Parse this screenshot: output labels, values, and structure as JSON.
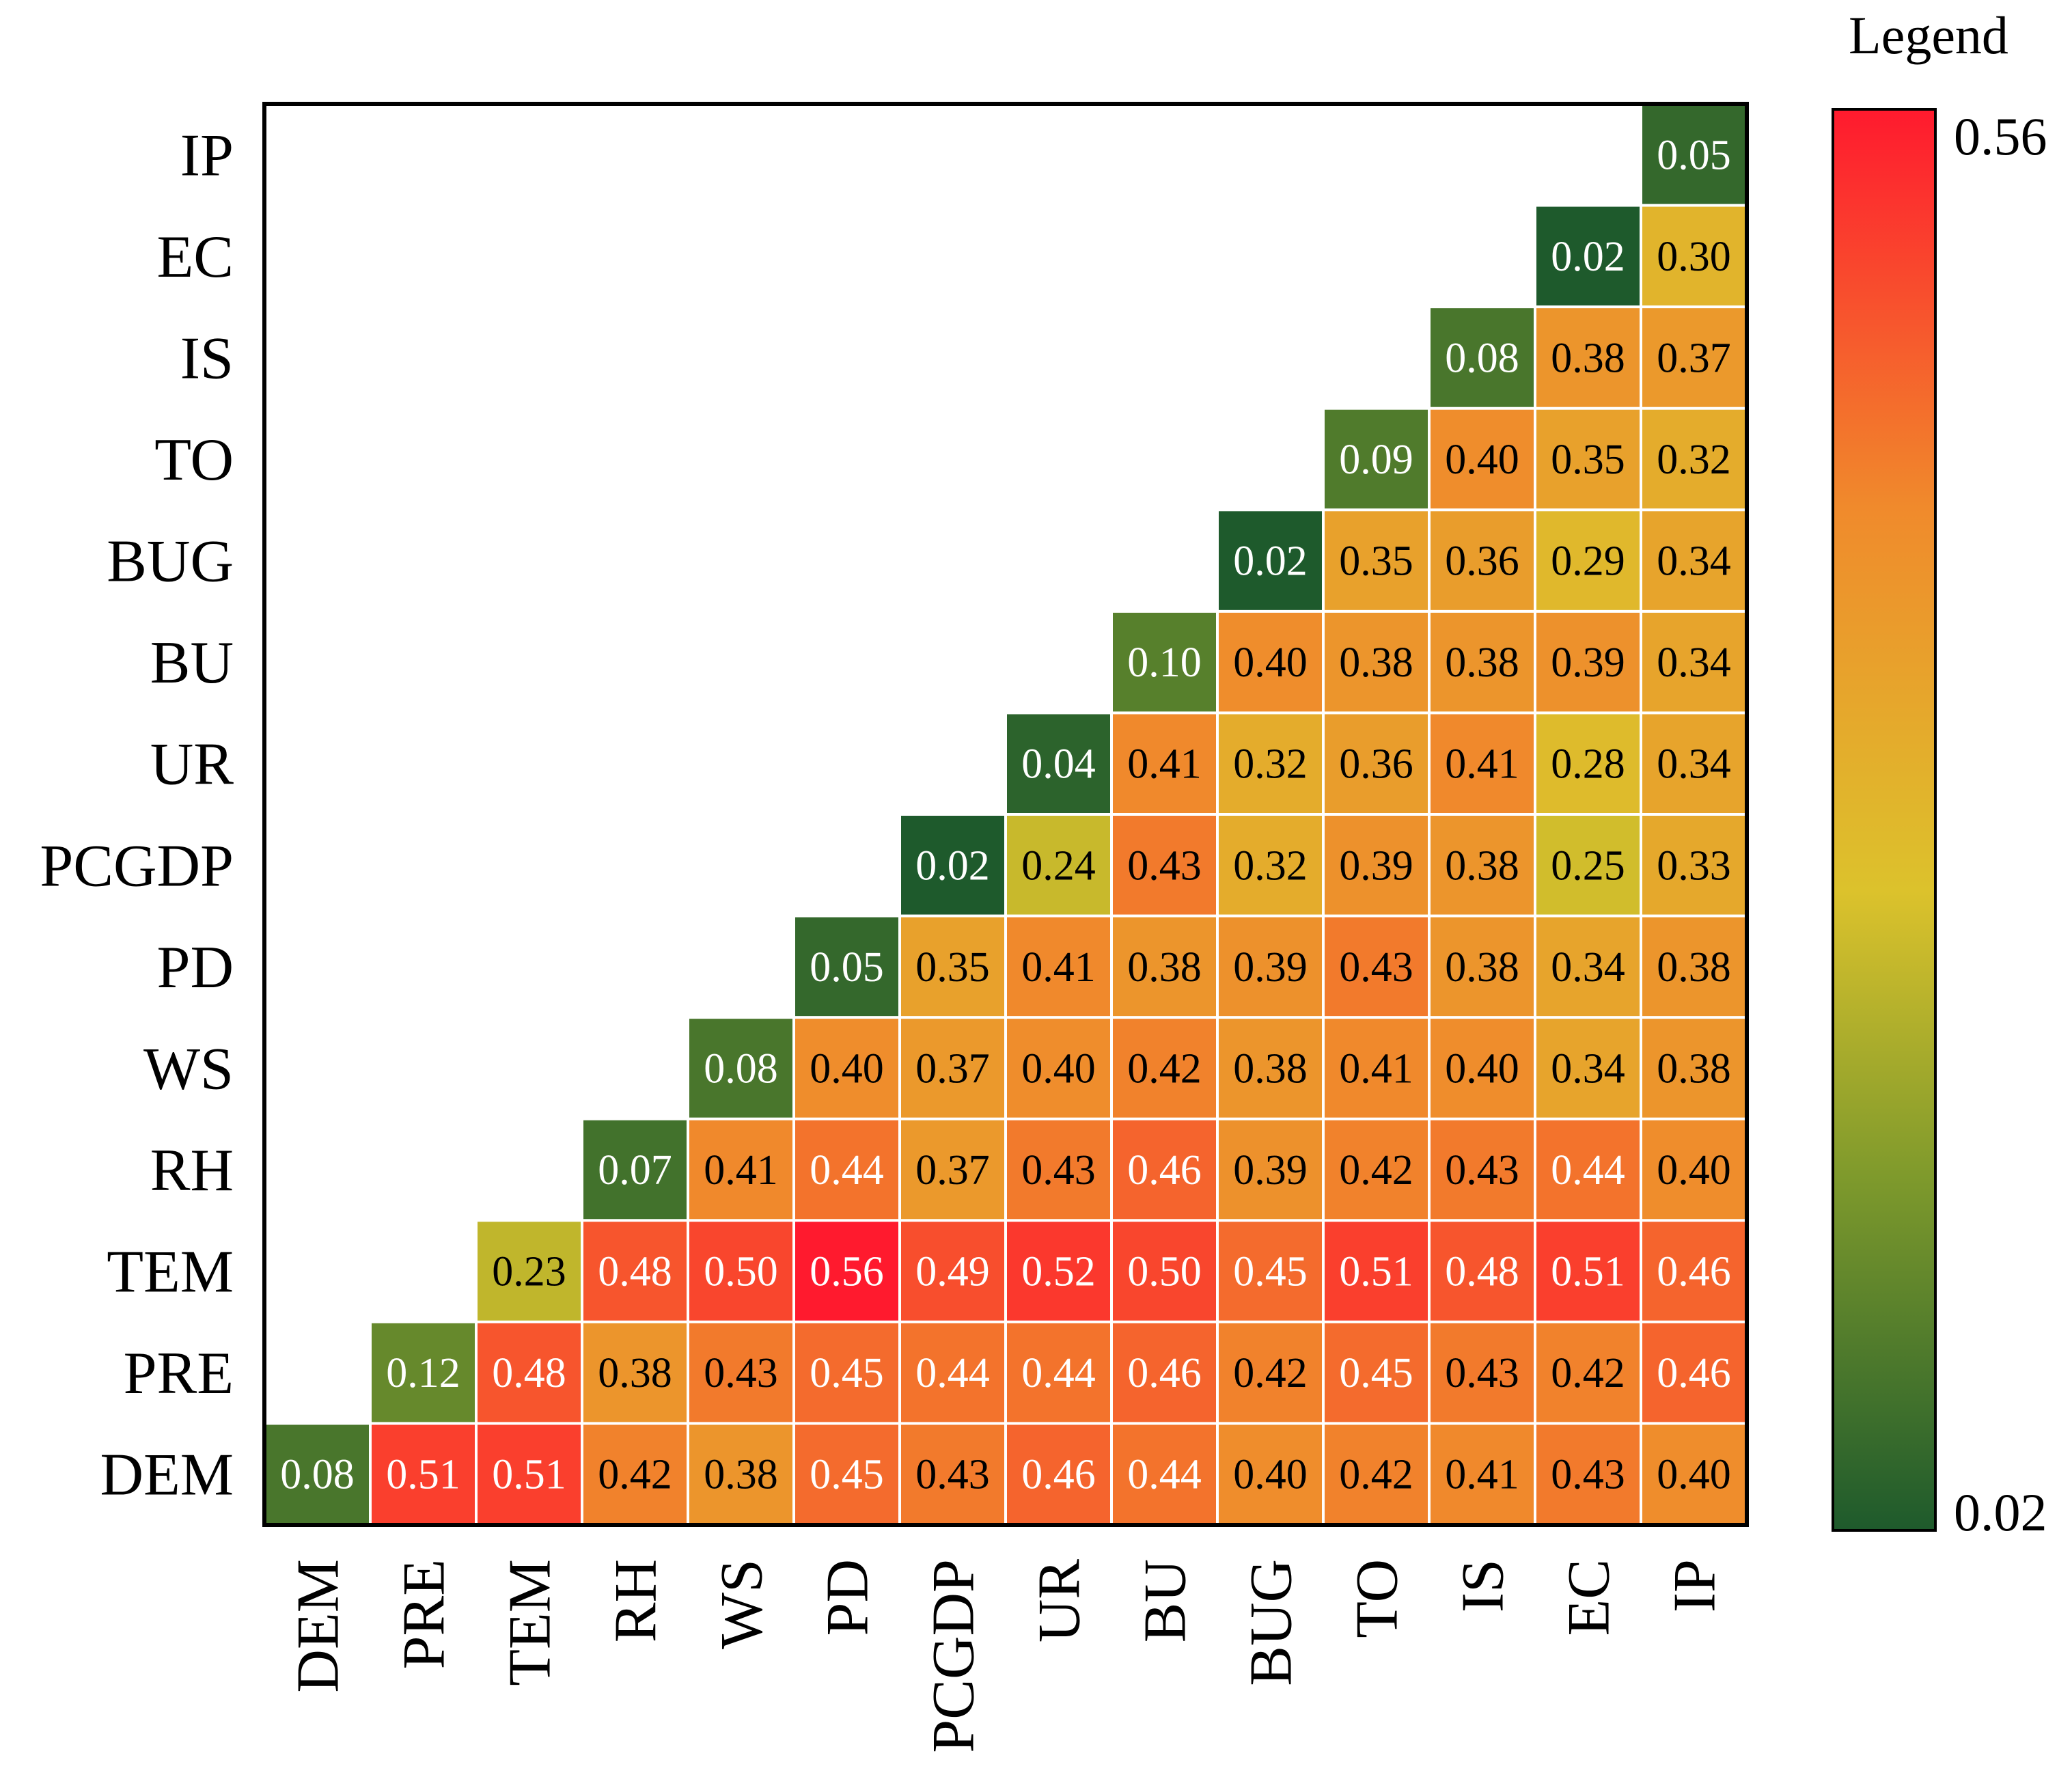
{
  "chart_data": {
    "type": "heatmap",
    "title": "",
    "xlabel": "",
    "ylabel": "",
    "variables": [
      "DEM",
      "PRE",
      "TEM",
      "RH",
      "WS",
      "PD",
      "PCGDP",
      "UR",
      "BU",
      "BUG",
      "TO",
      "IS",
      "EC",
      "IP"
    ],
    "rows": [
      {
        "name": "DEM",
        "labels": [
          "0.08",
          "0.51",
          "0.51",
          "0.42",
          "0.38",
          "0.45",
          "0.43",
          "0.46",
          "0.44",
          "0.40",
          "0.42",
          "0.41",
          "0.43",
          "0.40"
        ]
      },
      {
        "name": "PRE",
        "labels": [
          "0.12",
          "0.48",
          "0.38",
          "0.43",
          "0.45",
          "0.44",
          "0.44",
          "0.46",
          "0.42",
          "0.45",
          "0.43",
          "0.42",
          "0.46"
        ]
      },
      {
        "name": "TEM",
        "labels": [
          "0.23",
          "0.48",
          "0.50",
          "0.56",
          "0.49",
          "0.52",
          "0.50",
          "0.45",
          "0.51",
          "0.48",
          "0.51",
          "0.46"
        ]
      },
      {
        "name": "RH",
        "labels": [
          "0.07",
          "0.41",
          "0.44",
          "0.37",
          "0.43",
          "0.46",
          "0.39",
          "0.42",
          "0.43",
          "0.44",
          "0.40"
        ]
      },
      {
        "name": "WS",
        "labels": [
          "0.08",
          "0.40",
          "0.37",
          "0.40",
          "0.42",
          "0.38",
          "0.41",
          "0.40",
          "0.34",
          "0.38"
        ]
      },
      {
        "name": "PD",
        "labels": [
          "0.05",
          "0.35",
          "0.41",
          "0.38",
          "0.39",
          "0.43",
          "0.38",
          "0.34",
          "0.38"
        ]
      },
      {
        "name": "PCGDP",
        "labels": [
          "0.02",
          "0.24",
          "0.43",
          "0.32",
          "0.39",
          "0.38",
          "0.25",
          "0.33"
        ]
      },
      {
        "name": "UR",
        "labels": [
          "0.04",
          "0.41",
          "0.32",
          "0.36",
          "0.41",
          "0.28",
          "0.34"
        ]
      },
      {
        "name": "BU",
        "labels": [
          "0.10",
          "0.40",
          "0.38",
          "0.38",
          "0.39",
          "0.34"
        ]
      },
      {
        "name": "BUG",
        "labels": [
          "0.02",
          "0.35",
          "0.36",
          "0.29",
          "0.34"
        ]
      },
      {
        "name": "TO",
        "labels": [
          "0.09",
          "0.40",
          "0.35",
          "0.32"
        ]
      },
      {
        "name": "IS",
        "labels": [
          "0.08",
          "0.38",
          "0.37"
        ]
      },
      {
        "name": "EC",
        "labels": [
          "0.02",
          "0.30"
        ]
      },
      {
        "name": "IP",
        "labels": [
          "0.05"
        ]
      }
    ],
    "legend": {
      "title": "Legend",
      "max_label": "0.56",
      "min_label": "0.02",
      "min": 0.02,
      "max": 0.56,
      "placement": "right"
    },
    "colors": {
      "low": "#1e5a2c",
      "mid_low": "#7f9a2c",
      "mid": "#dcc22c",
      "mid_high": "#f08a2c",
      "high": "#ff1a2e"
    }
  }
}
